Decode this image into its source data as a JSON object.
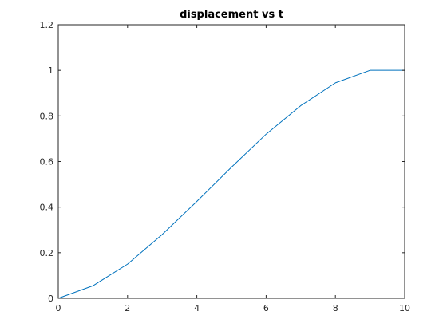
{
  "chart_data": {
    "type": "line",
    "title": "displacement vs t",
    "xlabel": "",
    "ylabel": "",
    "xlim": [
      0,
      10
    ],
    "ylim": [
      0,
      1.2
    ],
    "xticks": [
      0,
      2,
      4,
      6,
      8,
      10
    ],
    "xtick_labels": [
      "0",
      "2",
      "4",
      "6",
      "8",
      "10"
    ],
    "yticks": [
      0,
      0.2,
      0.4,
      0.6,
      0.8,
      1,
      1.2
    ],
    "ytick_labels": [
      "0",
      "0.2",
      "0.4",
      "0.6",
      "0.8",
      "1",
      "1.2"
    ],
    "grid": false,
    "legend": "none",
    "series": [
      {
        "color": "#0072bd",
        "x": [
          0,
          1,
          2,
          3,
          4,
          5,
          6,
          7,
          8,
          9,
          10
        ],
        "y": [
          0,
          0.055,
          0.15,
          0.28,
          0.425,
          0.575,
          0.72,
          0.845,
          0.945,
          1.0,
          1.0
        ]
      }
    ]
  }
}
